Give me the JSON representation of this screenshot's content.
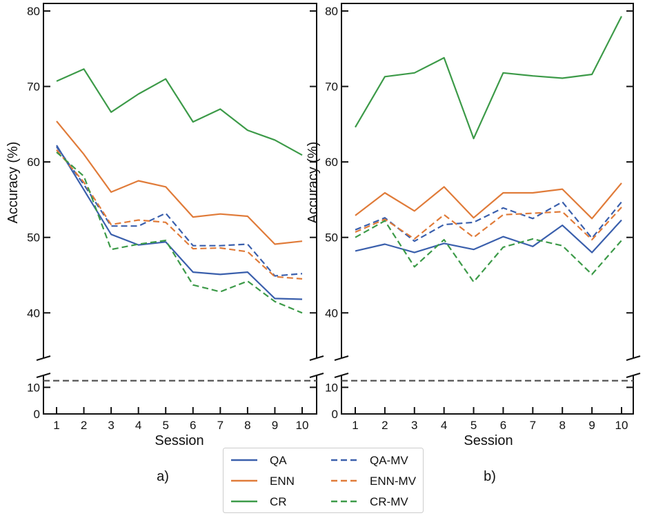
{
  "chart_data": [
    {
      "type": "line",
      "panel_label": "a)",
      "xlabel": "Session",
      "ylabel": "Accuracy (%)",
      "x": [
        1,
        2,
        3,
        4,
        5,
        6,
        7,
        8,
        9,
        10
      ],
      "x_ticks": [
        "1",
        "2",
        "3",
        "4",
        "5",
        "6",
        "7",
        "8",
        "9",
        "10"
      ],
      "ylim_upper": [
        34,
        81
      ],
      "ylim_lower": [
        0,
        14.5
      ],
      "y_ticks_upper": [
        40,
        50,
        60,
        70,
        80
      ],
      "y_ticks_lower": [
        0,
        10
      ],
      "reference_line": 12.5,
      "series": [
        {
          "name": "QA",
          "values": [
            62.2,
            56.3,
            50.4,
            49.0,
            49.4,
            45.4,
            45.1,
            45.4,
            41.9,
            41.8
          ]
        },
        {
          "name": "ENN",
          "values": [
            65.4,
            61.0,
            56.0,
            57.5,
            56.7,
            52.7,
            53.1,
            52.8,
            49.1,
            49.5
          ]
        },
        {
          "name": "CR",
          "values": [
            70.7,
            72.3,
            66.6,
            69.0,
            71.0,
            65.3,
            67.0,
            64.2,
            62.9,
            60.9
          ]
        },
        {
          "name": "QA-MV",
          "values": [
            62.0,
            57.0,
            51.5,
            51.5,
            53.2,
            48.9,
            48.9,
            49.1,
            44.9,
            45.2
          ]
        },
        {
          "name": "ENN-MV",
          "values": [
            61.6,
            57.3,
            51.7,
            52.3,
            52.0,
            48.5,
            48.6,
            48.1,
            44.8,
            44.5
          ]
        },
        {
          "name": "CR-MV",
          "values": [
            61.3,
            58.1,
            48.4,
            49.1,
            49.6,
            43.7,
            42.8,
            44.2,
            41.5,
            40.0
          ]
        }
      ]
    },
    {
      "type": "line",
      "panel_label": "b)",
      "xlabel": "Session",
      "ylabel": "Accuracy (%)",
      "x": [
        1,
        2,
        3,
        4,
        5,
        6,
        7,
        8,
        9,
        10
      ],
      "x_ticks": [
        "1",
        "2",
        "3",
        "4",
        "5",
        "6",
        "7",
        "8",
        "9",
        "10"
      ],
      "ylim_upper": [
        34,
        81
      ],
      "ylim_lower": [
        0,
        14.5
      ],
      "y_ticks_upper": [
        40,
        50,
        60,
        70,
        80
      ],
      "y_ticks_lower": [
        0,
        10
      ],
      "reference_line": 12.5,
      "series": [
        {
          "name": "QA",
          "values": [
            48.2,
            49.1,
            48.0,
            49.2,
            48.4,
            50.1,
            48.8,
            51.6,
            48.0,
            52.3
          ]
        },
        {
          "name": "ENN",
          "values": [
            52.9,
            55.9,
            53.5,
            56.7,
            52.6,
            55.9,
            55.9,
            56.4,
            52.5,
            57.2
          ]
        },
        {
          "name": "CR",
          "values": [
            64.6,
            71.3,
            71.8,
            73.8,
            63.1,
            71.8,
            71.4,
            71.1,
            71.6,
            79.3
          ]
        },
        {
          "name": "QA-MV",
          "values": [
            51.0,
            52.6,
            49.5,
            51.7,
            52.0,
            53.9,
            52.5,
            54.7,
            49.9,
            54.7
          ]
        },
        {
          "name": "ENN-MV",
          "values": [
            50.7,
            52.4,
            49.8,
            53.0,
            50.0,
            53.0,
            53.2,
            53.4,
            49.7,
            54.0
          ]
        },
        {
          "name": "CR-MV",
          "values": [
            50.0,
            52.2,
            46.1,
            49.7,
            44.1,
            48.7,
            49.8,
            48.9,
            45.1,
            49.6
          ]
        }
      ]
    }
  ],
  "legend": {
    "placement": "bottom-center",
    "entries": [
      {
        "name": "QA",
        "color": "#3a5fac",
        "style": "solid"
      },
      {
        "name": "ENN",
        "color": "#e07b39",
        "style": "solid"
      },
      {
        "name": "CR",
        "color": "#3c9a48",
        "style": "solid"
      },
      {
        "name": "QA-MV",
        "color": "#3a5fac",
        "style": "dashed"
      },
      {
        "name": "ENN-MV",
        "color": "#e07b39",
        "style": "dashed"
      },
      {
        "name": "CR-MV",
        "color": "#3c9a48",
        "style": "dashed"
      }
    ]
  },
  "reference_color": "#555555"
}
